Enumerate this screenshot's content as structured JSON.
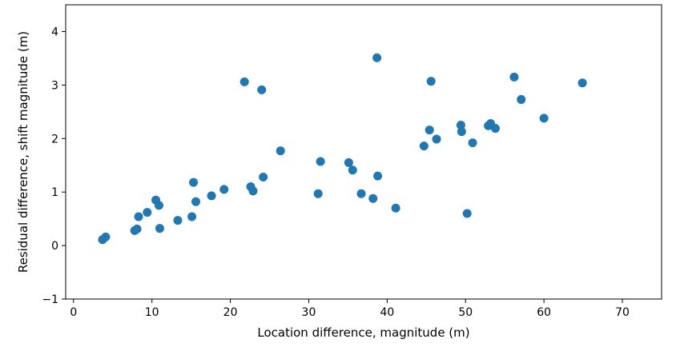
{
  "chart_data": {
    "type": "scatter",
    "title": "",
    "xlabel": "Location difference, magnitude (m)",
    "ylabel": "Residual difference, shift magnitude (m)",
    "xlim": [
      -1,
      75
    ],
    "ylim": [
      -1,
      4.5
    ],
    "xticks": [
      0,
      10,
      20,
      30,
      40,
      50,
      60,
      70
    ],
    "yticks": [
      -1,
      0,
      1,
      2,
      3,
      4
    ],
    "grid": false,
    "marker_color": "#1f77b4",
    "series": [
      {
        "x": [
          3.7,
          4.1,
          7.8,
          8.1,
          8.3,
          9.4,
          10.5,
          10.9,
          11.0,
          13.3,
          15.1,
          15.3,
          15.6,
          17.6,
          19.2,
          21.8,
          22.6,
          22.9,
          24.0,
          24.2,
          26.4,
          31.2,
          31.5,
          35.1,
          35.6,
          36.7,
          38.2,
          38.7,
          38.8,
          41.1,
          44.7,
          45.4,
          45.6,
          46.3,
          49.4,
          49.5,
          50.2,
          50.9,
          52.9,
          53.2,
          53.8,
          56.2,
          57.1,
          60.0,
          64.9
        ],
        "y": [
          0.11,
          0.16,
          0.28,
          0.31,
          0.54,
          0.62,
          0.85,
          0.75,
          0.32,
          0.47,
          0.54,
          1.18,
          0.82,
          0.93,
          1.05,
          3.06,
          1.1,
          1.02,
          2.91,
          1.28,
          1.77,
          0.97,
          1.57,
          1.55,
          1.41,
          0.97,
          0.88,
          3.51,
          1.3,
          0.7,
          1.86,
          2.16,
          3.07,
          1.99,
          2.25,
          2.13,
          0.6,
          1.92,
          2.24,
          2.28,
          2.19,
          3.15,
          2.73,
          2.38,
          3.04
        ]
      }
    ]
  }
}
